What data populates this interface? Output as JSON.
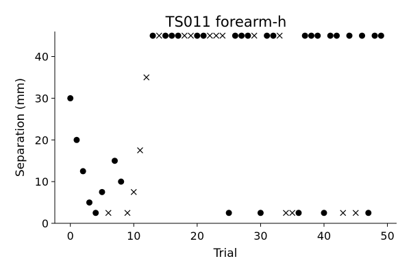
{
  "chart_data": {
    "type": "scatter",
    "title": "TS011 forearm-h",
    "xlabel": "Trial",
    "ylabel": "Separation (mm)",
    "xlim": [
      -2.45,
      51.45
    ],
    "ylim": [
      0,
      46
    ],
    "xticks": [
      0,
      10,
      20,
      30,
      40,
      50
    ],
    "yticks": [
      0,
      10,
      20,
      30,
      40
    ],
    "spines": "left-bottom",
    "grid": false,
    "marker_color": "#000000",
    "series": [
      {
        "marker": "circle",
        "points": [
          [
            0,
            30
          ],
          [
            1,
            20
          ],
          [
            2,
            12.5
          ],
          [
            3,
            5
          ],
          [
            4,
            2.5
          ],
          [
            5,
            7.5
          ],
          [
            7,
            15
          ],
          [
            8,
            10
          ],
          [
            13,
            45
          ],
          [
            15,
            45
          ],
          [
            16,
            45
          ],
          [
            17,
            45
          ],
          [
            20,
            45
          ],
          [
            21,
            45
          ],
          [
            25,
            2.5
          ],
          [
            26,
            45
          ],
          [
            27,
            45
          ],
          [
            28,
            45
          ],
          [
            30,
            2.5
          ],
          [
            31,
            45
          ],
          [
            32,
            45
          ],
          [
            36,
            2.5
          ],
          [
            37,
            45
          ],
          [
            38,
            45
          ],
          [
            39,
            45
          ],
          [
            40,
            2.5
          ],
          [
            41,
            45
          ],
          [
            42,
            45
          ],
          [
            44,
            45
          ],
          [
            46,
            45
          ],
          [
            47,
            2.5
          ],
          [
            48,
            45
          ],
          [
            49,
            45
          ]
        ]
      },
      {
        "marker": "x",
        "points": [
          [
            6,
            2.5
          ],
          [
            9,
            2.5
          ],
          [
            10,
            7.5
          ],
          [
            11,
            17.5
          ],
          [
            12,
            35
          ],
          [
            14,
            45
          ],
          [
            18,
            45
          ],
          [
            19,
            45
          ],
          [
            22,
            45
          ],
          [
            23,
            45
          ],
          [
            24,
            45
          ],
          [
            29,
            45
          ],
          [
            33,
            45
          ],
          [
            34,
            2.5
          ],
          [
            35,
            2.5
          ],
          [
            43,
            2.5
          ],
          [
            45,
            2.5
          ]
        ]
      }
    ]
  }
}
